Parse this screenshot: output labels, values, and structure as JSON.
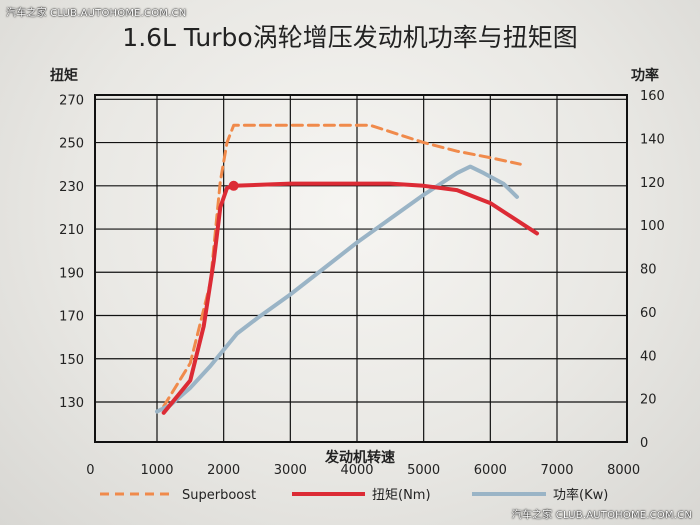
{
  "watermark": {
    "top": "汽车之家 CLUB.AUTOHOME.COM.CN",
    "bottom": "汽车之家 CLUB.AUTOHOME.COM.CN"
  },
  "chart_data": {
    "type": "line",
    "title": "1.6L Turbo涡轮增压发动机功率与扭矩图",
    "xlabel": "发动机转速",
    "ylabel_left": "扭矩",
    "ylabel_right": "功率",
    "x_ticks": [
      0,
      1000,
      2000,
      3000,
      4000,
      5000,
      6000,
      7000,
      8000
    ],
    "y_left_ticks": [
      130,
      150,
      170,
      190,
      210,
      230,
      250,
      270
    ],
    "y_right_ticks": [
      0,
      20,
      40,
      60,
      80,
      100,
      120,
      140,
      160
    ],
    "xlim": [
      0,
      8000
    ],
    "ylim_left": [
      115,
      272
    ],
    "ylim_right": [
      0,
      160
    ],
    "grid": true,
    "legend_position": "bottom",
    "series": [
      {
        "name": "Superboost",
        "axis": "left",
        "style": "dashed",
        "color": "#f08a4b",
        "points": [
          [
            1100,
            128
          ],
          [
            1500,
            148
          ],
          [
            1800,
            185
          ],
          [
            1950,
            232
          ],
          [
            2050,
            250
          ],
          [
            2150,
            258
          ],
          [
            2600,
            258
          ],
          [
            3000,
            258
          ],
          [
            3500,
            258
          ],
          [
            4000,
            258
          ],
          [
            4200,
            258
          ],
          [
            4600,
            254
          ],
          [
            5000,
            250
          ],
          [
            5500,
            246
          ],
          [
            6000,
            243
          ],
          [
            6300,
            241
          ],
          [
            6450,
            240
          ]
        ]
      },
      {
        "name": "扭矩(Nm)",
        "axis": "left",
        "style": "solid",
        "color": "#dc2b35",
        "points": [
          [
            1100,
            125
          ],
          [
            1500,
            140
          ],
          [
            1700,
            165
          ],
          [
            1850,
            195
          ],
          [
            1950,
            220
          ],
          [
            2050,
            229
          ],
          [
            2150,
            230
          ],
          [
            3000,
            231
          ],
          [
            4000,
            231
          ],
          [
            4500,
            231
          ],
          [
            5000,
            230
          ],
          [
            5500,
            228
          ],
          [
            6000,
            222
          ],
          [
            6300,
            216
          ],
          [
            6700,
            208
          ]
        ]
      },
      {
        "name": "功率(Kw)",
        "axis": "right",
        "style": "solid",
        "color": "#9ab4c6",
        "points": [
          [
            1000,
            14
          ],
          [
            1200,
            17
          ],
          [
            1500,
            25
          ],
          [
            1800,
            35
          ],
          [
            2200,
            50
          ],
          [
            2500,
            57
          ],
          [
            3000,
            68
          ],
          [
            3500,
            80
          ],
          [
            4000,
            92
          ],
          [
            4500,
            103
          ],
          [
            5000,
            114
          ],
          [
            5500,
            124
          ],
          [
            5700,
            127
          ],
          [
            5900,
            124
          ],
          [
            6200,
            119
          ],
          [
            6400,
            113
          ]
        ]
      }
    ]
  }
}
